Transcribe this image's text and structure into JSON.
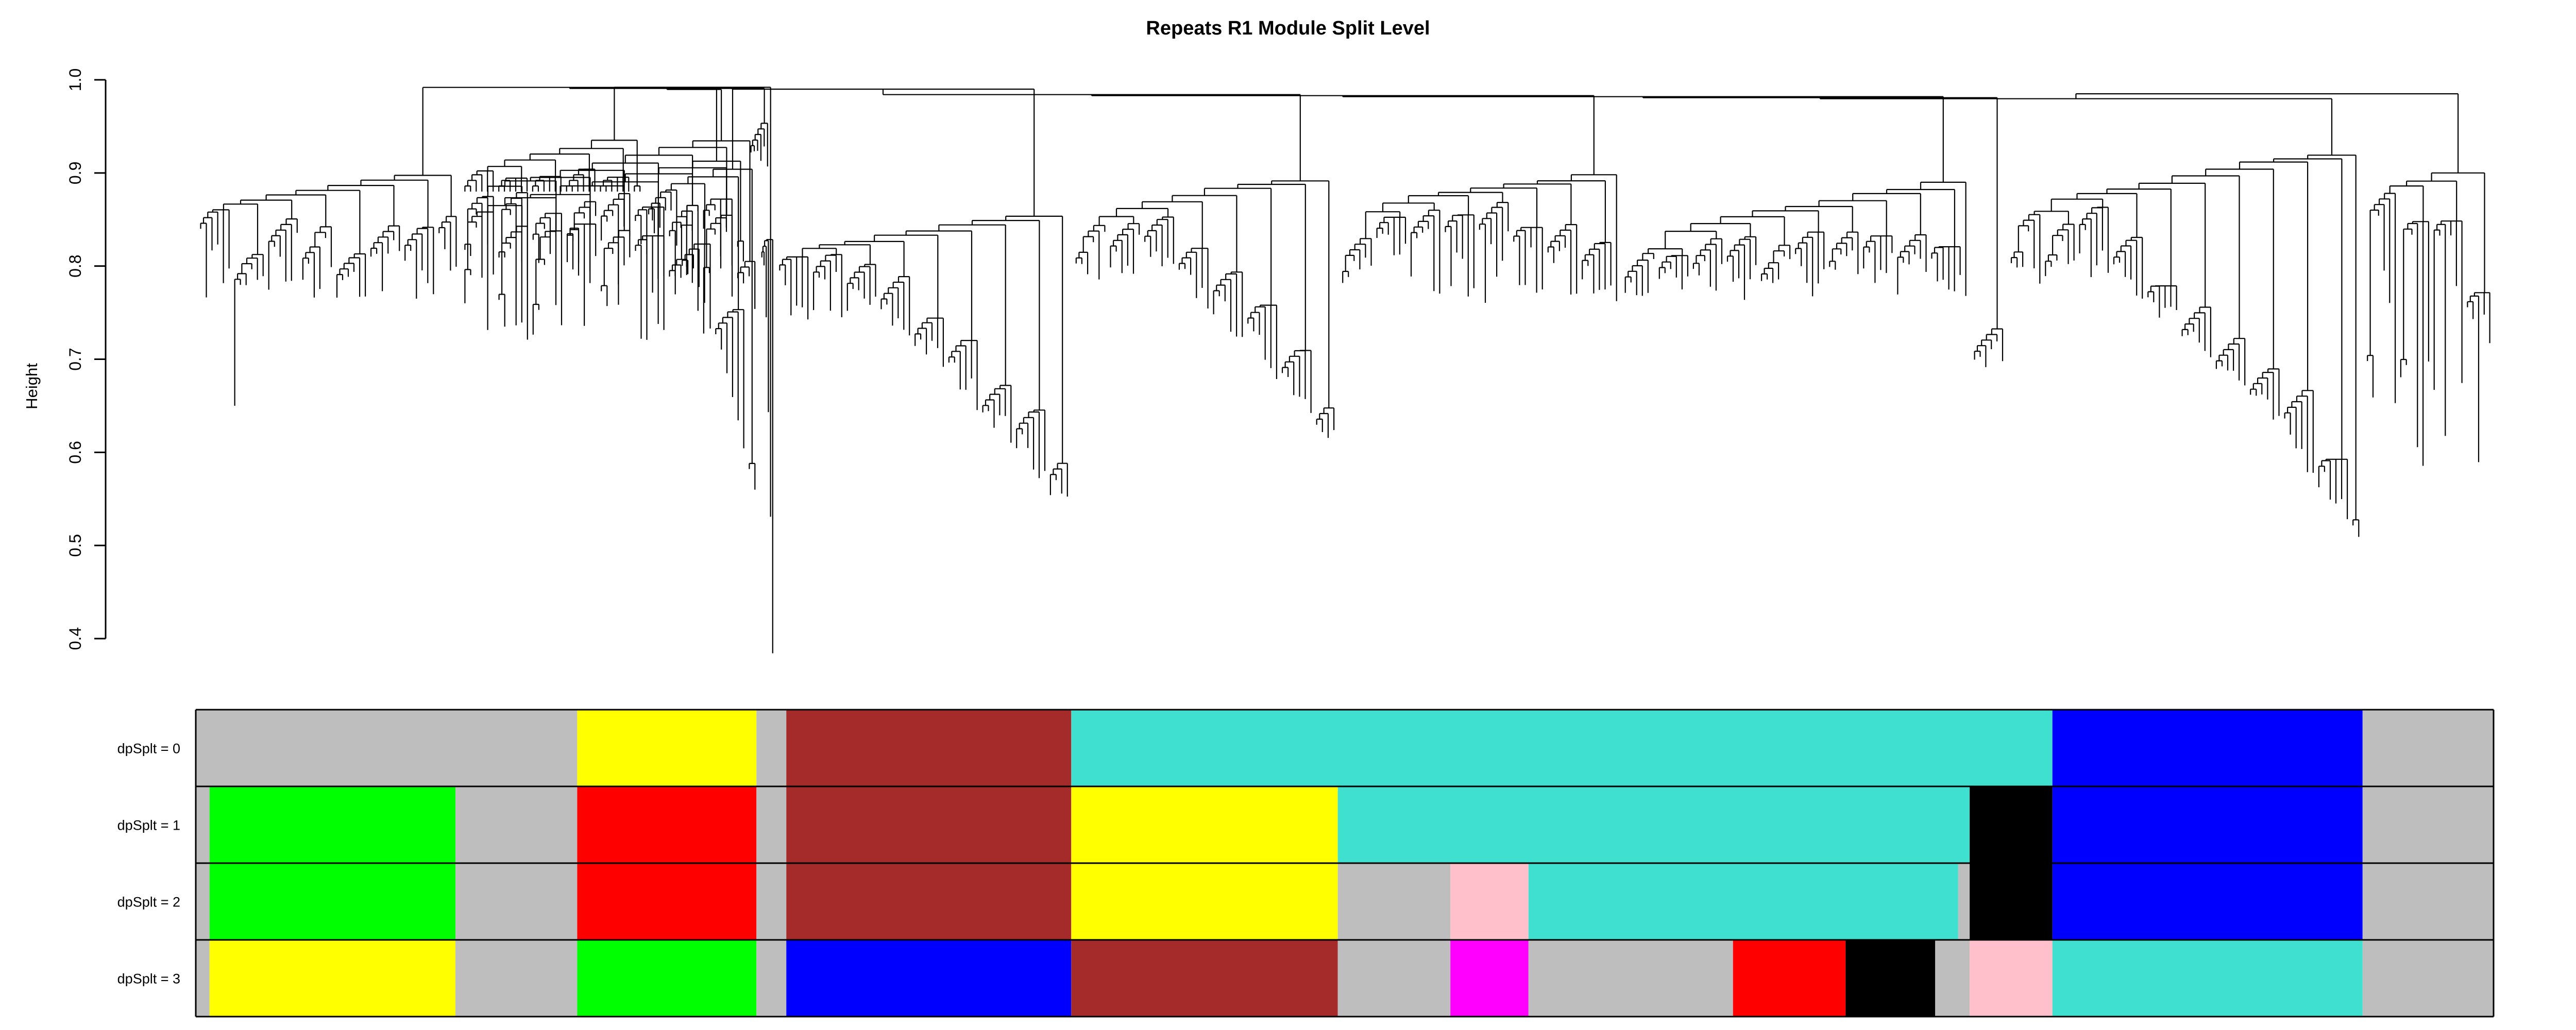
{
  "chart_data": {
    "type": "dendrogram",
    "title": "Repeats R1 Module Split Level",
    "ylabel": "Height",
    "ylim": [
      0.4,
      1.0
    ],
    "yticks": [
      {
        "value": 0.4,
        "label": "0.4"
      },
      {
        "value": 0.5,
        "label": "0.5"
      },
      {
        "value": 0.6,
        "label": "0.6"
      },
      {
        "value": 0.7,
        "label": "0.7"
      },
      {
        "value": 0.8,
        "label": "0.8"
      },
      {
        "value": 0.9,
        "label": "0.9"
      },
      {
        "value": 1.0,
        "label": "1.0"
      }
    ],
    "clusters": [
      {
        "start": 0.0,
        "end": 0.115,
        "top": 0.985,
        "subtop": 0.96,
        "floor": 0.84,
        "deep": 0.65,
        "shape": "drop"
      },
      {
        "start": 0.115,
        "end": 0.24,
        "top": 0.985,
        "subtop": 0.965,
        "floor": 0.86,
        "deep": 0.78,
        "shape": "flat"
      },
      {
        "start": 0.24,
        "end": 0.25,
        "top": 0.99,
        "subtop": 0.98,
        "floor": 0.93,
        "deep": 0.9,
        "shape": "flat"
      },
      {
        "start": 0.115,
        "end": 0.245,
        "top": 0.985,
        "subtop": 0.985,
        "floor": 0.86,
        "deep": 0.72,
        "shape": "flat"
      },
      {
        "start": 0.115,
        "end": 0.195,
        "top": 0.992,
        "subtop": 0.985,
        "floor": 0.88,
        "deep": 0.88,
        "shape": "flat"
      },
      {
        "start": 0.195,
        "end": 0.245,
        "top": 0.992,
        "subtop": 0.97,
        "floor": 0.86,
        "deep": 0.56,
        "shape": "ramp"
      },
      {
        "start": 0.245,
        "end": 0.252,
        "top": 0.992,
        "subtop": 0.97,
        "floor": 0.86,
        "deep": 0.37,
        "shape": "ramp"
      },
      {
        "start": 0.252,
        "end": 0.381,
        "top": 0.99,
        "subtop": 0.955,
        "floor": 0.8,
        "deep": 0.545,
        "shape": "ramp"
      },
      {
        "start": 0.381,
        "end": 0.497,
        "top": 0.975,
        "subtop": 0.96,
        "floor": 0.84,
        "deep": 0.62,
        "shape": "ramp"
      },
      {
        "start": 0.497,
        "end": 0.62,
        "top": 0.972,
        "subtop": 0.95,
        "floor": 0.84,
        "deep": 0.76,
        "shape": "flat"
      },
      {
        "start": 0.62,
        "end": 0.772,
        "top": 0.975,
        "subtop": 0.945,
        "floor": 0.82,
        "deep": 0.76,
        "shape": "flat"
      },
      {
        "start": 0.772,
        "end": 0.788,
        "top": 0.97,
        "subtop": 0.92,
        "floor": 0.72,
        "deep": 0.69,
        "shape": "flat"
      },
      {
        "start": 0.788,
        "end": 0.943,
        "top": 0.972,
        "subtop": 0.955,
        "floor": 0.84,
        "deep": 0.52,
        "shape": "ramp"
      },
      {
        "start": 0.943,
        "end": 1.0,
        "top": 0.985,
        "subtop": 0.965,
        "floor": 0.88,
        "deep": 0.585,
        "shape": "flat"
      }
    ],
    "color_rows": [
      {
        "label": "dpSplt = 0",
        "segments": [
          {
            "start": 0.0,
            "end": 0.166,
            "color": "#bebebe"
          },
          {
            "start": 0.166,
            "end": 0.244,
            "color": "#ffff00"
          },
          {
            "start": 0.244,
            "end": 0.257,
            "color": "#bebebe"
          },
          {
            "start": 0.257,
            "end": 0.381,
            "color": "#a52a2a"
          },
          {
            "start": 0.381,
            "end": 0.808,
            "color": "#40e0d0"
          },
          {
            "start": 0.808,
            "end": 0.943,
            "color": "#0000ff"
          },
          {
            "start": 0.943,
            "end": 1.0,
            "color": "#bebebe"
          }
        ]
      },
      {
        "label": "dpSplt = 1",
        "segments": [
          {
            "start": 0.0,
            "end": 0.006,
            "color": "#bebebe"
          },
          {
            "start": 0.006,
            "end": 0.113,
            "color": "#00ff00"
          },
          {
            "start": 0.113,
            "end": 0.166,
            "color": "#bebebe"
          },
          {
            "start": 0.166,
            "end": 0.244,
            "color": "#ff0000"
          },
          {
            "start": 0.244,
            "end": 0.257,
            "color": "#bebebe"
          },
          {
            "start": 0.257,
            "end": 0.381,
            "color": "#a52a2a"
          },
          {
            "start": 0.381,
            "end": 0.497,
            "color": "#ffff00"
          },
          {
            "start": 0.497,
            "end": 0.772,
            "color": "#40e0d0"
          },
          {
            "start": 0.772,
            "end": 0.808,
            "color": "#000000"
          },
          {
            "start": 0.808,
            "end": 0.943,
            "color": "#0000ff"
          },
          {
            "start": 0.943,
            "end": 1.0,
            "color": "#bebebe"
          }
        ]
      },
      {
        "label": "dpSplt = 2",
        "segments": [
          {
            "start": 0.0,
            "end": 0.006,
            "color": "#bebebe"
          },
          {
            "start": 0.006,
            "end": 0.113,
            "color": "#00ff00"
          },
          {
            "start": 0.113,
            "end": 0.166,
            "color": "#bebebe"
          },
          {
            "start": 0.166,
            "end": 0.244,
            "color": "#ff0000"
          },
          {
            "start": 0.244,
            "end": 0.257,
            "color": "#bebebe"
          },
          {
            "start": 0.257,
            "end": 0.381,
            "color": "#a52a2a"
          },
          {
            "start": 0.381,
            "end": 0.497,
            "color": "#ffff00"
          },
          {
            "start": 0.497,
            "end": 0.546,
            "color": "#bebebe"
          },
          {
            "start": 0.546,
            "end": 0.58,
            "color": "#ffc0cb"
          },
          {
            "start": 0.58,
            "end": 0.767,
            "color": "#40e0d0"
          },
          {
            "start": 0.767,
            "end": 0.772,
            "color": "#bebebe"
          },
          {
            "start": 0.772,
            "end": 0.808,
            "color": "#000000"
          },
          {
            "start": 0.808,
            "end": 0.943,
            "color": "#0000ff"
          },
          {
            "start": 0.943,
            "end": 1.0,
            "color": "#bebebe"
          }
        ]
      },
      {
        "label": "dpSplt = 3",
        "segments": [
          {
            "start": 0.0,
            "end": 0.006,
            "color": "#bebebe"
          },
          {
            "start": 0.006,
            "end": 0.113,
            "color": "#ffff00"
          },
          {
            "start": 0.113,
            "end": 0.166,
            "color": "#bebebe"
          },
          {
            "start": 0.166,
            "end": 0.244,
            "color": "#00ff00"
          },
          {
            "start": 0.244,
            "end": 0.257,
            "color": "#bebebe"
          },
          {
            "start": 0.257,
            "end": 0.381,
            "color": "#0000ff"
          },
          {
            "start": 0.381,
            "end": 0.497,
            "color": "#a52a2a"
          },
          {
            "start": 0.497,
            "end": 0.546,
            "color": "#bebebe"
          },
          {
            "start": 0.546,
            "end": 0.58,
            "color": "#ff00ff"
          },
          {
            "start": 0.58,
            "end": 0.669,
            "color": "#bebebe"
          },
          {
            "start": 0.669,
            "end": 0.718,
            "color": "#ff0000"
          },
          {
            "start": 0.718,
            "end": 0.757,
            "color": "#000000"
          },
          {
            "start": 0.757,
            "end": 0.772,
            "color": "#bebebe"
          },
          {
            "start": 0.772,
            "end": 0.808,
            "color": "#ffc0cb"
          },
          {
            "start": 0.808,
            "end": 0.943,
            "color": "#40e0d0"
          },
          {
            "start": 0.943,
            "end": 1.0,
            "color": "#bebebe"
          }
        ]
      }
    ]
  }
}
